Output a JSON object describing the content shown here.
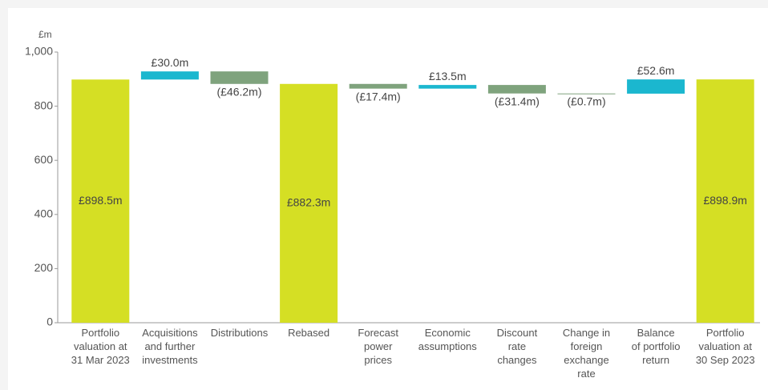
{
  "chart_data": {
    "type": "waterfall",
    "y_axis_label": "£m",
    "categories": [
      [
        "Portfolio",
        "valuation at",
        "31 Mar 2023"
      ],
      [
        "Acquisitions",
        "and further",
        "investments"
      ],
      [
        "Distributions"
      ],
      [
        "Rebased"
      ],
      [
        "Forecast",
        "power",
        "prices"
      ],
      [
        "Economic",
        "assumptions"
      ],
      [
        "Discount",
        "rate",
        "changes"
      ],
      [
        "Change in",
        "foreign",
        "exchange",
        "rate"
      ],
      [
        "Balance",
        "of portfolio",
        "return"
      ],
      [
        "Portfolio",
        "valuation at",
        "30 Sep 2023"
      ]
    ],
    "values": [
      898.5,
      30.0,
      -46.2,
      882.3,
      -17.4,
      13.5,
      -31.4,
      -0.7,
      52.6,
      898.9
    ],
    "value_labels": [
      "£898.5m",
      "£30.0m",
      "(£46.2m)",
      "£882.3m",
      "(£17.4m)",
      "£13.5m",
      "(£31.4m)",
      "(£0.7m)",
      "£52.6m",
      "£898.9m"
    ],
    "kinds": [
      "total",
      "change",
      "change",
      "total",
      "change",
      "change",
      "change",
      "change",
      "change",
      "total"
    ],
    "colors": {
      "total": "#d5df24",
      "increase": "#1bb7cf",
      "decrease": "#7fa37d"
    },
    "ylim": [
      0,
      1000
    ],
    "yticks": [
      0,
      200,
      400,
      600,
      800,
      {
        "value": 1000,
        "label": "1,000"
      }
    ]
  }
}
